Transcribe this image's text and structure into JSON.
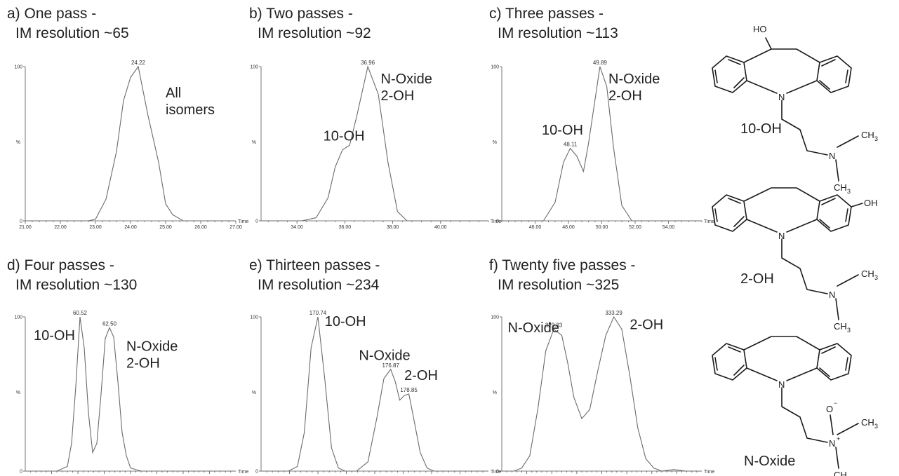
{
  "chart_data": [
    {
      "type": "line",
      "title": "a) One pass -",
      "subtitle": "IM resolution ~65",
      "xlabel": "Time",
      "ylabel": "%",
      "xlim": [
        21.0,
        27.0
      ],
      "ylim": [
        0,
        100
      ],
      "yticks": [
        "0",
        "100"
      ],
      "xticks": [
        "21.00",
        "22.00",
        "23.00",
        "24.00",
        "25.00",
        "26.00",
        "27.00"
      ],
      "series": [
        {
          "x": [
            21.0,
            22.8,
            23.0,
            23.3,
            23.6,
            23.8,
            24.0,
            24.22,
            24.5,
            24.8,
            25.0,
            25.2,
            25.5,
            27.0
          ],
          "y": [
            0,
            0,
            1,
            14,
            45,
            78,
            93,
            100,
            68,
            38,
            11,
            4,
            0,
            0
          ]
        }
      ],
      "peak_labels": [
        {
          "x": 24.22,
          "y": 100,
          "text": "24.22"
        }
      ],
      "annotations": [
        {
          "lines": [
            "All",
            "isomers"
          ],
          "x": 25.0,
          "y": 80
        }
      ]
    },
    {
      "type": "line",
      "title": "b) Two passes -",
      "subtitle": "IM resolution ~92",
      "xlabel": "Time",
      "ylabel": "%",
      "xlim": [
        32.5,
        42.0
      ],
      "ylim": [
        0,
        100
      ],
      "yticks": [
        "0",
        "100"
      ],
      "xticks": [
        "34.00",
        "36.00",
        "38.00",
        "40.00"
      ],
      "series": [
        {
          "x": [
            32.5,
            34.2,
            34.8,
            35.3,
            35.6,
            35.9,
            36.2,
            36.5,
            36.96,
            37.4,
            37.8,
            38.2,
            38.6,
            42.0
          ],
          "y": [
            0,
            0,
            2,
            15,
            35,
            46,
            49,
            68,
            100,
            82,
            38,
            6,
            0,
            0
          ]
        }
      ],
      "peak_labels": [
        {
          "x": 36.96,
          "y": 100,
          "text": "36.96"
        }
      ],
      "annotations": [
        {
          "lines": [
            "N-Oxide",
            "2-OH"
          ],
          "x": 37.5,
          "y": 89
        },
        {
          "lines": [
            "10-OH"
          ],
          "x": 35.1,
          "y": 52
        }
      ]
    },
    {
      "type": "line",
      "title": "c) Three passes -",
      "subtitle": "IM resolution ~113",
      "xlabel": "Time",
      "ylabel": "%",
      "xlim": [
        44.0,
        56.0
      ],
      "ylim": [
        0,
        100
      ],
      "yticks": [
        "0",
        "100"
      ],
      "xticks": [
        "46.00",
        "48.00",
        "50.00",
        "52.00",
        "54.00"
      ],
      "series": [
        {
          "x": [
            44.0,
            46.5,
            47.2,
            47.7,
            48.11,
            48.5,
            48.9,
            49.2,
            49.89,
            50.3,
            50.7,
            51.2,
            51.8,
            56.0
          ],
          "y": [
            0,
            0,
            12,
            38,
            47,
            42,
            32,
            50,
            100,
            87,
            48,
            10,
            0,
            0
          ]
        }
      ],
      "peak_labels": [
        {
          "x": 48.11,
          "y": 47,
          "text": "48.11"
        },
        {
          "x": 49.89,
          "y": 100,
          "text": "49.89"
        }
      ],
      "annotations": [
        {
          "lines": [
            "N-Oxide",
            "2-OH"
          ],
          "x": 50.4,
          "y": 89
        },
        {
          "lines": [
            "10-OH"
          ],
          "x": 46.4,
          "y": 56
        }
      ]
    },
    {
      "type": "line",
      "title": "d) Four passes -",
      "subtitle": "IM resolution ~130",
      "xlabel": "Time",
      "ylabel": "%",
      "xlim": [
        0,
        100
      ],
      "ylim": [
        0,
        100
      ],
      "yticks": [
        "0",
        "100"
      ],
      "xticks": [],
      "series": [
        {
          "x": [
            0,
            15,
            20,
            22,
            24,
            26,
            28,
            30,
            32,
            34,
            36,
            38,
            40,
            42,
            44,
            46,
            48,
            50,
            55,
            60,
            100
          ],
          "y": [
            0,
            0,
            3,
            18,
            55,
            100,
            80,
            38,
            12,
            18,
            50,
            86,
            93,
            87,
            58,
            25,
            10,
            2,
            0,
            0,
            0
          ]
        }
      ],
      "peak_labels": [
        {
          "x": 26,
          "y": 100,
          "text": "60.52"
        },
        {
          "x": 40,
          "y": 93,
          "text": "62.50"
        }
      ],
      "annotations": [
        {
          "lines": [
            "10-OH"
          ],
          "x": 4,
          "y": 85
        },
        {
          "lines": [
            "N-Oxide",
            "2-OH"
          ],
          "x": 48,
          "y": 78
        }
      ]
    },
    {
      "type": "line",
      "title": "e) Thirteen passes -",
      "subtitle": "IM resolution ~234",
      "xlabel": "Time",
      "ylabel": "%",
      "xlim": [
        0,
        100
      ],
      "ylim": [
        0,
        100
      ],
      "yticks": [
        "0",
        "100"
      ],
      "xticks": [],
      "series": [
        {
          "x": [
            0,
            12,
            16,
            19,
            22,
            25,
            28,
            31,
            34,
            37,
            42,
            47,
            51,
            54,
            57,
            59,
            61,
            63,
            65,
            67,
            70,
            73,
            76,
            100
          ],
          "y": [
            0,
            0,
            3,
            25,
            80,
            100,
            60,
            15,
            2,
            0,
            0,
            6,
            35,
            60,
            66,
            58,
            46,
            49,
            50,
            35,
            12,
            2,
            0,
            0
          ]
        }
      ],
      "peak_labels": [
        {
          "x": 25,
          "y": 100,
          "text": "170.74"
        },
        {
          "x": 57,
          "y": 66,
          "text": "176.87"
        },
        {
          "x": 65,
          "y": 50,
          "text": "178.85"
        }
      ],
      "annotations": [
        {
          "lines": [
            "10-OH"
          ],
          "x": 28,
          "y": 94
        },
        {
          "lines": [
            "N-Oxide"
          ],
          "x": 43,
          "y": 72
        },
        {
          "lines": [
            "2-OH"
          ],
          "x": 63,
          "y": 59
        }
      ]
    },
    {
      "type": "line",
      "title": "f) Twenty five passes -",
      "subtitle": "IM resolution ~325",
      "xlabel": "Time",
      "ylabel": "%",
      "xlim": [
        0,
        100
      ],
      "ylim": [
        0,
        100
      ],
      "yticks": [
        "0",
        "100"
      ],
      "xticks": [],
      "series": [
        {
          "x": [
            0,
            6,
            10,
            14,
            18,
            22,
            26,
            30,
            33,
            36,
            40,
            44,
            48,
            52,
            56,
            60,
            64,
            68,
            72,
            76,
            80,
            86,
            92,
            100
          ],
          "y": [
            0,
            0,
            2,
            10,
            40,
            78,
            92,
            88,
            70,
            48,
            34,
            40,
            65,
            88,
            100,
            92,
            62,
            28,
            8,
            2,
            0,
            1,
            0,
            0
          ]
        }
      ],
      "peak_labels": [
        {
          "x": 26,
          "y": 92,
          "text": "329.33"
        },
        {
          "x": 56,
          "y": 100,
          "text": "333.29"
        }
      ],
      "annotations": [
        {
          "lines": [
            "N-Oxide"
          ],
          "x": 3,
          "y": 90
        },
        {
          "lines": [
            "2-OH"
          ],
          "x": 64,
          "y": 92
        }
      ]
    }
  ],
  "molecules": [
    {
      "name": "10-OH",
      "atoms": {
        "hydroxyl": "HO",
        "ring_n": "N",
        "amine_n": "N",
        "methyl_top": "CH",
        "methyl_bottom": "CH",
        "methyl_sub": "3"
      }
    },
    {
      "name": "2-OH",
      "atoms": {
        "hydroxyl": "OH",
        "ring_n": "N",
        "amine_n": "N",
        "methyl_top": "CH",
        "methyl_bottom": "CH",
        "methyl_sub": "3"
      }
    },
    {
      "name": "N-Oxide",
      "atoms": {
        "oxide": "O",
        "oxide_charge": "−",
        "ring_n": "N",
        "amine_n": "N",
        "amine_charge": "+",
        "methyl_top": "CH",
        "methyl_bottom": "CH",
        "methyl_sub": "3"
      }
    }
  ]
}
